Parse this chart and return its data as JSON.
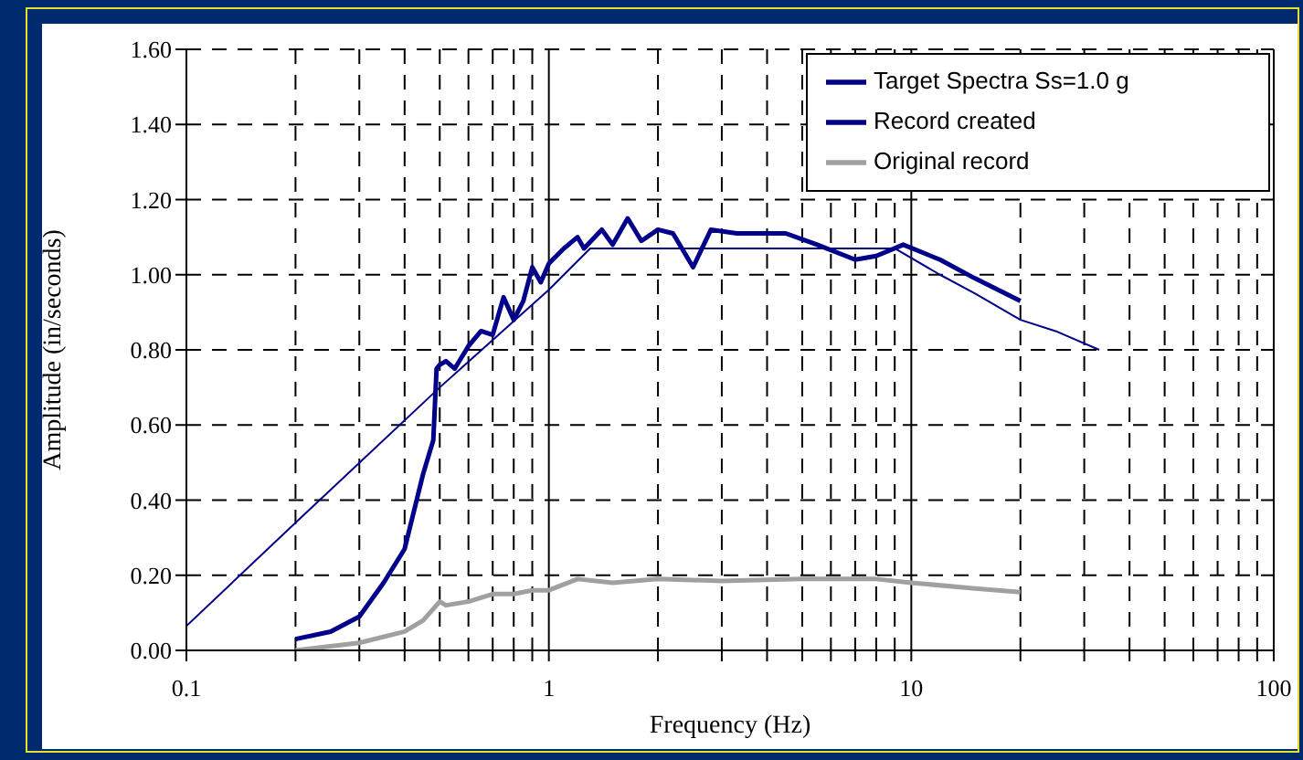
{
  "chart_data": {
    "type": "line",
    "xlabel": "Frequency (Hz)",
    "ylabel": "Amplitude (in/seconds)",
    "log": "x",
    "grid": true,
    "legend": "top right",
    "marker": "none",
    "line_style": "solid",
    "xlim": [
      0.1,
      100
    ],
    "ylim": [
      0,
      1.6
    ],
    "xticks": [
      0.1,
      {
        "value": 0.2,
        "label": null
      },
      {
        "value": 0.3,
        "label": null
      },
      {
        "value": 0.4,
        "label": null
      },
      {
        "value": 0.5,
        "label": null
      },
      {
        "value": 0.6,
        "label": null
      },
      {
        "value": 0.7,
        "label": null
      },
      {
        "value": 0.8,
        "label": null
      },
      {
        "value": 0.9,
        "label": null
      },
      1,
      {
        "value": 2,
        "label": null
      },
      {
        "value": 3,
        "label": null
      },
      {
        "value": 4,
        "label": null
      },
      {
        "value": 5,
        "label": null
      },
      {
        "value": 6,
        "label": null
      },
      {
        "value": 7,
        "label": null
      },
      {
        "value": 8,
        "label": null
      },
      {
        "value": 9,
        "label": null
      },
      10,
      {
        "value": 20,
        "label": null
      },
      {
        "value": 30,
        "label": null
      },
      {
        "value": 40,
        "label": null
      },
      {
        "value": 50,
        "label": null
      },
      {
        "value": 60,
        "label": null
      },
      {
        "value": 70,
        "label": null
      },
      {
        "value": 80,
        "label": null
      },
      {
        "value": 90,
        "label": null
      },
      100
    ],
    "yticks": [
      {
        "value": 0,
        "label": "0.00"
      },
      {
        "value": 0.2,
        "label": "0.20"
      },
      {
        "value": 0.4,
        "label": "0.40"
      },
      {
        "value": 0.6,
        "label": "0.60"
      },
      {
        "value": 0.8,
        "label": "0.80"
      },
      {
        "value": 1,
        "label": "1.00"
      },
      {
        "value": 1.2,
        "label": "1.20"
      },
      {
        "value": 1.4,
        "label": "1.40"
      },
      {
        "value": 1.6,
        "label": "1.60"
      }
    ],
    "series": [
      {
        "name": "Target Spectra Ss=1.0 g",
        "color": "#00008b",
        "x": [
          0.1,
          0.2,
          0.5,
          1,
          1.3,
          9,
          12,
          15,
          20,
          25,
          33
        ],
        "values": [
          0.065,
          0.34,
          0.7,
          0.96,
          1.07,
          1.07,
          1.0,
          0.95,
          0.88,
          0.85,
          0.8
        ]
      },
      {
        "name": "Record created",
        "color": "#00008b",
        "x": [
          0.2,
          0.25,
          0.3,
          0.35,
          0.4,
          0.45,
          0.48,
          0.49,
          0.5,
          0.52,
          0.55,
          0.6,
          0.65,
          0.7,
          0.75,
          0.8,
          0.85,
          0.9,
          0.95,
          1,
          1.1,
          1.2,
          1.25,
          1.4,
          1.5,
          1.65,
          1.8,
          2,
          2.2,
          2.5,
          2.8,
          3.3,
          4.5,
          5.5,
          7,
          8,
          9.5,
          12,
          15,
          20
        ],
        "values": [
          0.03,
          0.05,
          0.09,
          0.18,
          0.27,
          0.47,
          0.56,
          0.75,
          0.76,
          0.77,
          0.75,
          0.81,
          0.85,
          0.84,
          0.94,
          0.88,
          0.93,
          1.02,
          0.98,
          1.03,
          1.07,
          1.1,
          1.07,
          1.12,
          1.08,
          1.15,
          1.09,
          1.12,
          1.11,
          1.02,
          1.12,
          1.11,
          1.11,
          1.08,
          1.04,
          1.05,
          1.08,
          1.04,
          0.99,
          0.93
        ]
      },
      {
        "name": "Original record",
        "color": "#a0a0a0",
        "x": [
          0.2,
          0.3,
          0.4,
          0.45,
          0.5,
          0.52,
          0.6,
          0.7,
          0.8,
          0.9,
          1,
          1.2,
          1.5,
          2,
          3,
          5,
          8,
          10,
          15,
          20
        ],
        "values": [
          0.0,
          0.02,
          0.05,
          0.08,
          0.13,
          0.12,
          0.13,
          0.15,
          0.15,
          0.16,
          0.16,
          0.19,
          0.18,
          0.19,
          0.185,
          0.19,
          0.19,
          0.18,
          0.165,
          0.155
        ]
      }
    ]
  }
}
